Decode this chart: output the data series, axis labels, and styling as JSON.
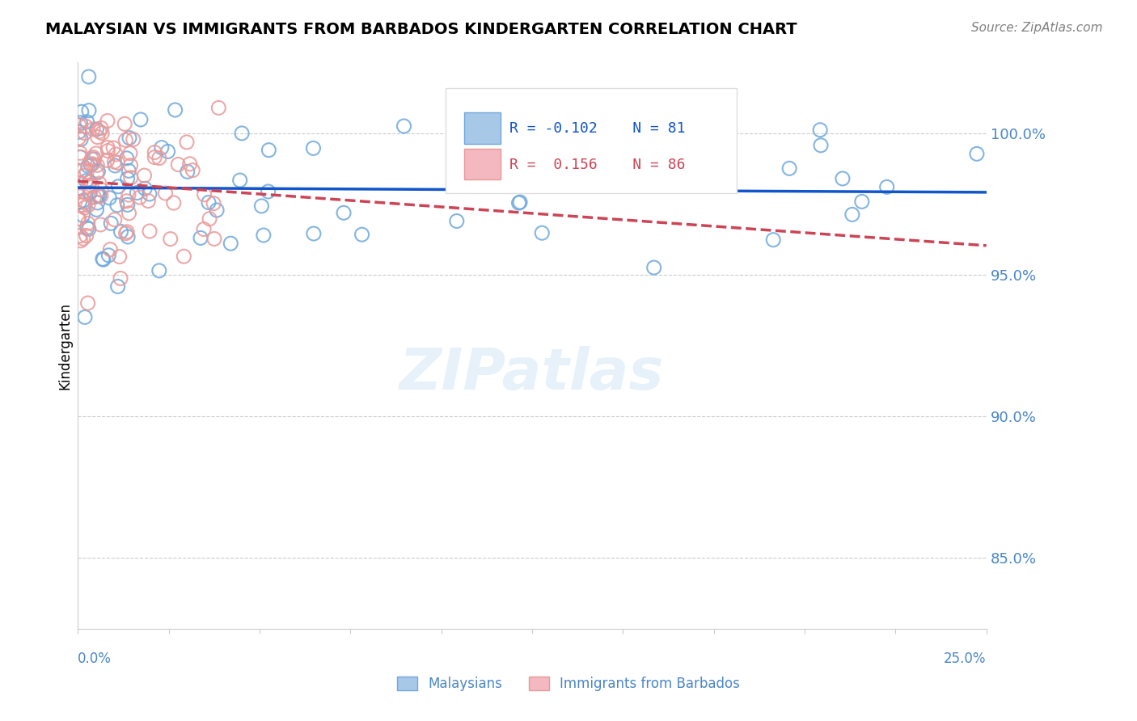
{
  "title": "MALAYSIAN VS IMMIGRANTS FROM BARBADOS KINDERGARTEN CORRELATION CHART",
  "source": "Source: ZipAtlas.com",
  "ylabel": "Kindergarten",
  "xlim": [
    0.0,
    0.25
  ],
  "ylim": [
    0.825,
    1.025
  ],
  "legend_blue_r": "-0.102",
  "legend_blue_n": "81",
  "legend_pink_r": "0.156",
  "legend_pink_n": "86",
  "blue_color": "#6fa8dc",
  "pink_color": "#ea9999",
  "blue_line_color": "#1155cc",
  "pink_line_color": "#cc4455",
  "watermark": "ZIPatlas",
  "yticks": [
    0.85,
    0.9,
    0.95,
    1.0
  ],
  "ytick_labels": [
    "85.0%",
    "90.0%",
    "95.0%",
    "100.0%"
  ],
  "right_label_color": "#4a86c8"
}
